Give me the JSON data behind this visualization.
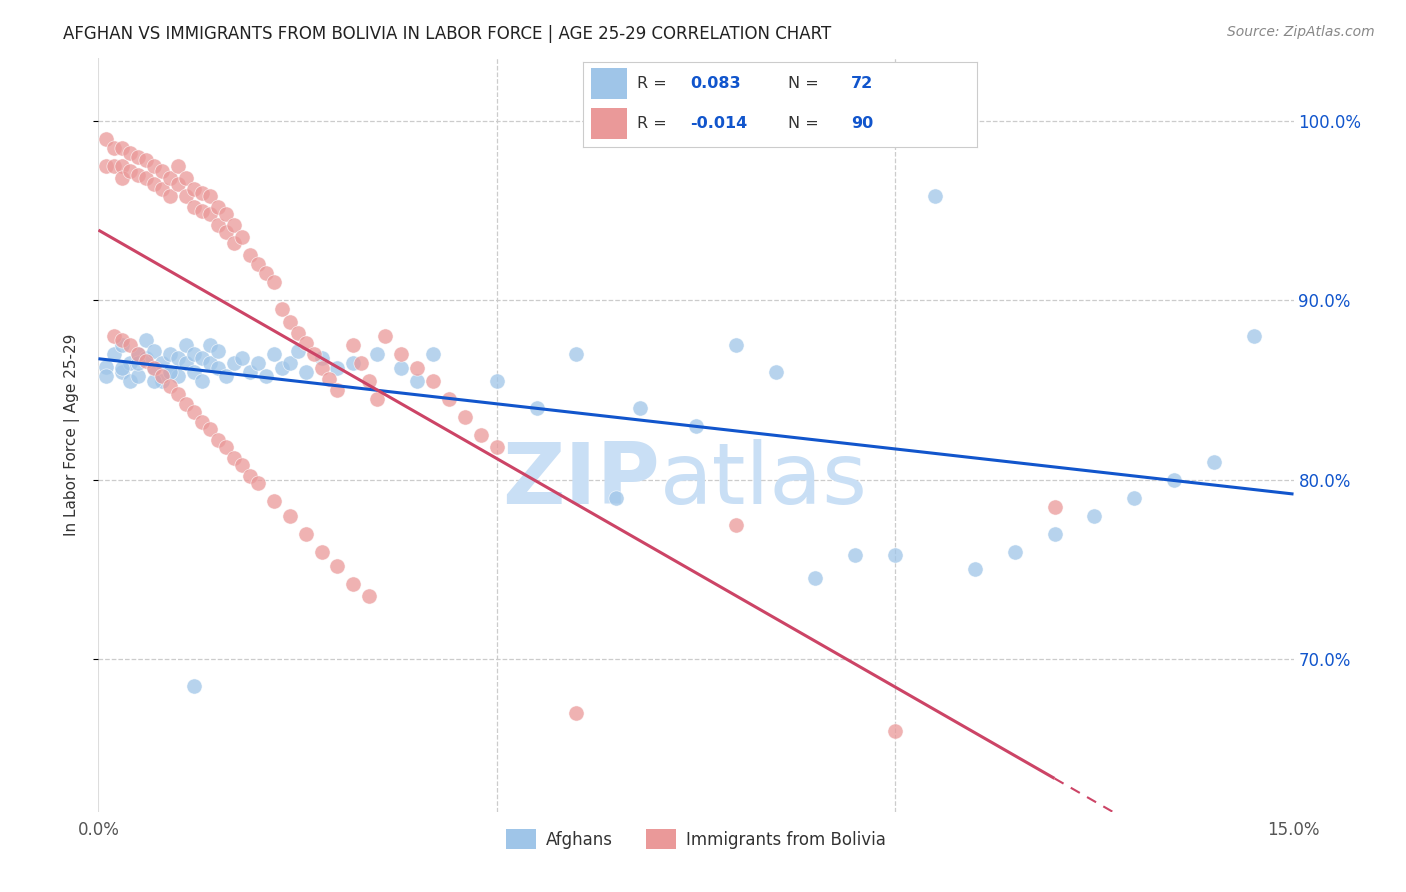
{
  "title": "AFGHAN VS IMMIGRANTS FROM BOLIVIA IN LABOR FORCE | AGE 25-29 CORRELATION CHART",
  "source": "Source: ZipAtlas.com",
  "ylabel": "In Labor Force | Age 25-29",
  "ytick_values": [
    0.7,
    0.8,
    0.9,
    1.0
  ],
  "ytick_labels": [
    "70.0%",
    "80.0%",
    "90.0%",
    "100.0%"
  ],
  "xlim": [
    0.0,
    0.15
  ],
  "ylim": [
    0.615,
    1.035
  ],
  "legend_r_blue": "0.083",
  "legend_n_blue": "72",
  "legend_r_pink": "-0.014",
  "legend_n_pink": "90",
  "blue_color": "#9fc5e8",
  "pink_color": "#ea9999",
  "trend_blue_color": "#1155cc",
  "trend_pink_color": "#cc4466",
  "watermark_zip_color": "#c9dff5",
  "watermark_atlas_color": "#c9dff5",
  "title_fontsize": 12,
  "source_fontsize": 10,
  "legend_fontsize": 12,
  "tick_fontsize": 12,
  "ylabel_fontsize": 11,
  "blue_x": [
    0.001,
    0.002,
    0.003,
    0.003,
    0.004,
    0.004,
    0.005,
    0.005,
    0.006,
    0.006,
    0.007,
    0.007,
    0.008,
    0.008,
    0.009,
    0.009,
    0.01,
    0.01,
    0.011,
    0.011,
    0.012,
    0.012,
    0.013,
    0.013,
    0.014,
    0.014,
    0.015,
    0.015,
    0.016,
    0.017,
    0.018,
    0.019,
    0.02,
    0.021,
    0.022,
    0.023,
    0.024,
    0.025,
    0.026,
    0.028,
    0.03,
    0.032,
    0.035,
    0.038,
    0.04,
    0.042,
    0.05,
    0.055,
    0.06,
    0.065,
    0.068,
    0.075,
    0.08,
    0.085,
    0.09,
    0.095,
    0.1,
    0.105,
    0.11,
    0.115,
    0.12,
    0.125,
    0.13,
    0.135,
    0.14,
    0.145,
    0.001,
    0.003,
    0.005,
    0.007,
    0.009,
    0.012
  ],
  "blue_y": [
    0.863,
    0.87,
    0.875,
    0.86,
    0.865,
    0.855,
    0.87,
    0.858,
    0.868,
    0.878,
    0.862,
    0.872,
    0.865,
    0.855,
    0.87,
    0.86,
    0.868,
    0.858,
    0.865,
    0.875,
    0.86,
    0.87,
    0.868,
    0.855,
    0.865,
    0.875,
    0.862,
    0.872,
    0.858,
    0.865,
    0.868,
    0.86,
    0.865,
    0.858,
    0.87,
    0.862,
    0.865,
    0.872,
    0.86,
    0.868,
    0.862,
    0.865,
    0.87,
    0.862,
    0.855,
    0.87,
    0.855,
    0.84,
    0.87,
    0.79,
    0.84,
    0.83,
    0.875,
    0.86,
    0.745,
    0.758,
    0.758,
    0.958,
    0.75,
    0.76,
    0.77,
    0.78,
    0.79,
    0.8,
    0.81,
    0.88,
    0.858,
    0.862,
    0.865,
    0.855,
    0.86,
    0.685
  ],
  "pink_x": [
    0.001,
    0.001,
    0.002,
    0.002,
    0.003,
    0.003,
    0.003,
    0.004,
    0.004,
    0.005,
    0.005,
    0.006,
    0.006,
    0.007,
    0.007,
    0.008,
    0.008,
    0.009,
    0.009,
    0.01,
    0.01,
    0.011,
    0.011,
    0.012,
    0.012,
    0.013,
    0.013,
    0.014,
    0.014,
    0.015,
    0.015,
    0.016,
    0.016,
    0.017,
    0.017,
    0.018,
    0.019,
    0.02,
    0.021,
    0.022,
    0.023,
    0.024,
    0.025,
    0.026,
    0.027,
    0.028,
    0.029,
    0.03,
    0.032,
    0.033,
    0.034,
    0.035,
    0.036,
    0.038,
    0.04,
    0.042,
    0.044,
    0.046,
    0.048,
    0.05,
    0.002,
    0.003,
    0.004,
    0.005,
    0.006,
    0.007,
    0.008,
    0.009,
    0.01,
    0.011,
    0.012,
    0.013,
    0.014,
    0.015,
    0.016,
    0.017,
    0.018,
    0.019,
    0.02,
    0.022,
    0.024,
    0.026,
    0.028,
    0.03,
    0.032,
    0.034,
    0.06,
    0.08,
    0.1,
    0.12
  ],
  "pink_y": [
    0.975,
    0.99,
    0.985,
    0.975,
    0.985,
    0.975,
    0.968,
    0.982,
    0.972,
    0.98,
    0.97,
    0.978,
    0.968,
    0.975,
    0.965,
    0.972,
    0.962,
    0.968,
    0.958,
    0.975,
    0.965,
    0.968,
    0.958,
    0.962,
    0.952,
    0.96,
    0.95,
    0.958,
    0.948,
    0.952,
    0.942,
    0.948,
    0.938,
    0.942,
    0.932,
    0.935,
    0.925,
    0.92,
    0.915,
    0.91,
    0.895,
    0.888,
    0.882,
    0.876,
    0.87,
    0.862,
    0.856,
    0.85,
    0.875,
    0.865,
    0.855,
    0.845,
    0.88,
    0.87,
    0.862,
    0.855,
    0.845,
    0.835,
    0.825,
    0.818,
    0.88,
    0.878,
    0.875,
    0.87,
    0.866,
    0.862,
    0.858,
    0.852,
    0.848,
    0.842,
    0.838,
    0.832,
    0.828,
    0.822,
    0.818,
    0.812,
    0.808,
    0.802,
    0.798,
    0.788,
    0.78,
    0.77,
    0.76,
    0.752,
    0.742,
    0.735,
    0.67,
    0.775,
    0.66,
    0.785
  ]
}
